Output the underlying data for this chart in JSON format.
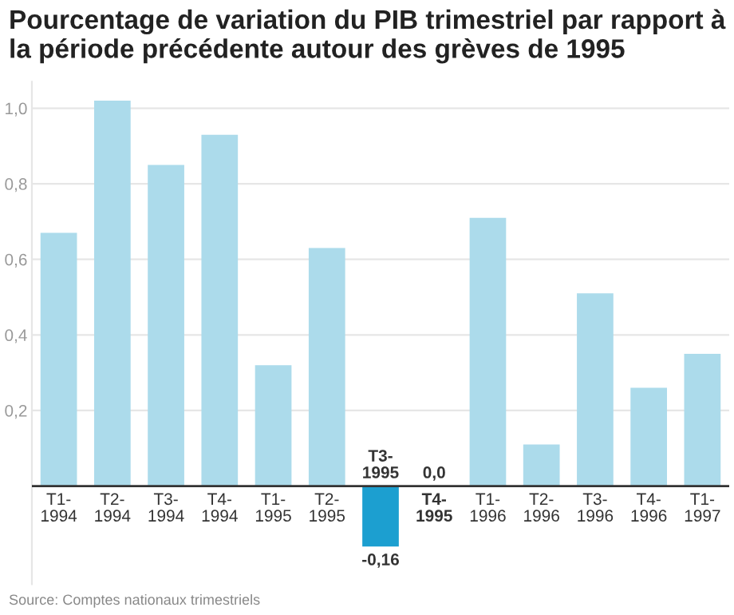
{
  "chart_data": {
    "type": "bar",
    "title": "Pourcentage de variation du PIB trimestriel par rapport à la période précédente autour des grèves de 1995",
    "categories": [
      "T1-\n1994",
      "T2-\n1994",
      "T3-\n1994",
      "T4-\n1994",
      "T1-\n1995",
      "T2-\n1995",
      "T3-\n1995",
      "T4-\n1995",
      "T1-\n1996",
      "T2-\n1996",
      "T3-\n1996",
      "T4-\n1996",
      "T1-\n1997"
    ],
    "values": [
      0.67,
      1.02,
      0.85,
      0.93,
      0.32,
      0.63,
      -0.16,
      0.0,
      0.71,
      0.11,
      0.51,
      0.26,
      0.35
    ],
    "colors": [
      "#acdbeb",
      "#acdbeb",
      "#acdbeb",
      "#acdbeb",
      "#acdbeb",
      "#acdbeb",
      "#1c9fd0",
      "#acdbeb",
      "#acdbeb",
      "#acdbeb",
      "#acdbeb",
      "#acdbeb",
      "#acdbeb"
    ],
    "value_labels": [
      null,
      null,
      null,
      null,
      null,
      null,
      "-0,16",
      "0,0",
      null,
      null,
      null,
      null,
      null
    ],
    "ylim": [
      -0.26,
      1.07
    ],
    "yticks": [
      {
        "value": 0.2,
        "label": "0,2"
      },
      {
        "value": 0.4,
        "label": "0,4"
      },
      {
        "value": 0.6,
        "label": "0,6"
      },
      {
        "value": 0.8,
        "label": "0,8"
      },
      {
        "value": 1.0,
        "label": "1,0"
      }
    ],
    "grid": "y",
    "annotations": [
      "Source: Comptes nationaux trimestriels"
    ]
  }
}
